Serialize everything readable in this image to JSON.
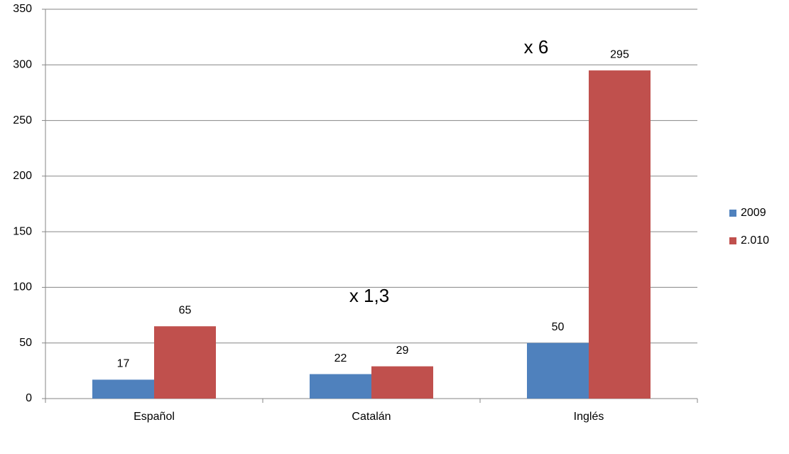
{
  "chart_data": {
    "type": "bar",
    "categories": [
      "Español",
      "Catalán",
      "Inglés"
    ],
    "series": [
      {
        "name": "2009",
        "color": "#4f81bd",
        "values": [
          17,
          22,
          50
        ]
      },
      {
        "name": "2.010",
        "color": "#c0504d",
        "values": [
          65,
          29,
          295
        ]
      }
    ],
    "ylim": [
      0,
      350
    ],
    "yticks": [
      0,
      50,
      100,
      150,
      200,
      250,
      300,
      350
    ],
    "grid": true,
    "legend": "right",
    "annotations": [
      "x 1,3",
      "x 6"
    ]
  }
}
